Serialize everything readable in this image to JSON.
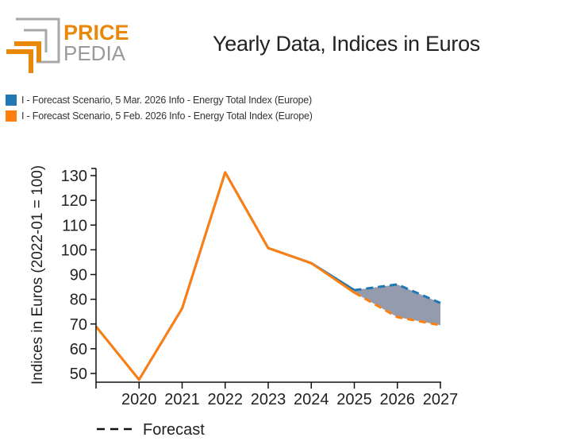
{
  "logo": {
    "line1": "PRICE",
    "line2": "PEDIA",
    "accent_color": "#e8890c",
    "frame_color": "#a8a8a8"
  },
  "chart_data": {
    "type": "line",
    "title": "Yearly Data, Indices in Euros",
    "xlabel": "",
    "ylabel": "Indices in Euros (2022-01 = 100)",
    "x": [
      2019,
      2020,
      2021,
      2022,
      2023,
      2024,
      2025,
      2026,
      2027
    ],
    "x_tick_labels": [
      "2020",
      "2021",
      "2022",
      "2023",
      "2024",
      "2025",
      "2026",
      "2027"
    ],
    "y_tick_labels": [
      "50",
      "60",
      "70",
      "80",
      "90",
      "100",
      "110",
      "120",
      "130"
    ],
    "ylim": [
      46,
      133
    ],
    "xlim": [
      2019,
      2027
    ],
    "grid": false,
    "legend_position": "top-left",
    "forecast_start": 2025,
    "series": [
      {
        "name": "I - Forecast Scenario, 5 Mar. 2026 Info - Energy Total Index (Europe)",
        "color": "#1f77b4",
        "values": [
          69,
          47.5,
          76.3,
          131.3,
          100.7,
          94.6,
          83.7,
          86,
          78.5
        ]
      },
      {
        "name": "I - Forecast Scenario, 5 Feb. 2026 Info - Energy Total Index (Europe)",
        "color": "#ff7f0e",
        "values": [
          69,
          47.5,
          76.3,
          131.3,
          100.7,
          94.6,
          82.7,
          72.8,
          69.5
        ]
      }
    ],
    "band_fill_color": "#8e96a8",
    "annotations": [
      {
        "type": "line-style-legend",
        "label": "Forecast",
        "style": "dashed"
      }
    ]
  }
}
